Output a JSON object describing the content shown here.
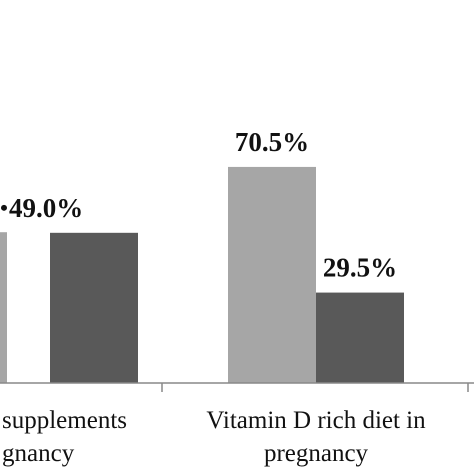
{
  "chart_data": {
    "type": "bar",
    "title": "",
    "xlabel": "",
    "ylabel": "",
    "ylim": [
      0,
      100
    ],
    "categories": [
      {
        "line1": "supplements",
        "line2": "gnancy"
      },
      {
        "line1": "Vitamin D rich diet in",
        "line2": "pregnancy"
      }
    ],
    "series": [
      {
        "values": [
          null,
          70.5
        ],
        "labels": [
          "",
          "70.5%"
        ],
        "color": "#a6a6a6"
      },
      {
        "values": [
          49.0,
          29.5
        ],
        "labels": [
          "49.0%",
          "29.5%"
        ],
        "color": "#595959"
      }
    ],
    "legend": "none",
    "grid": false
  }
}
